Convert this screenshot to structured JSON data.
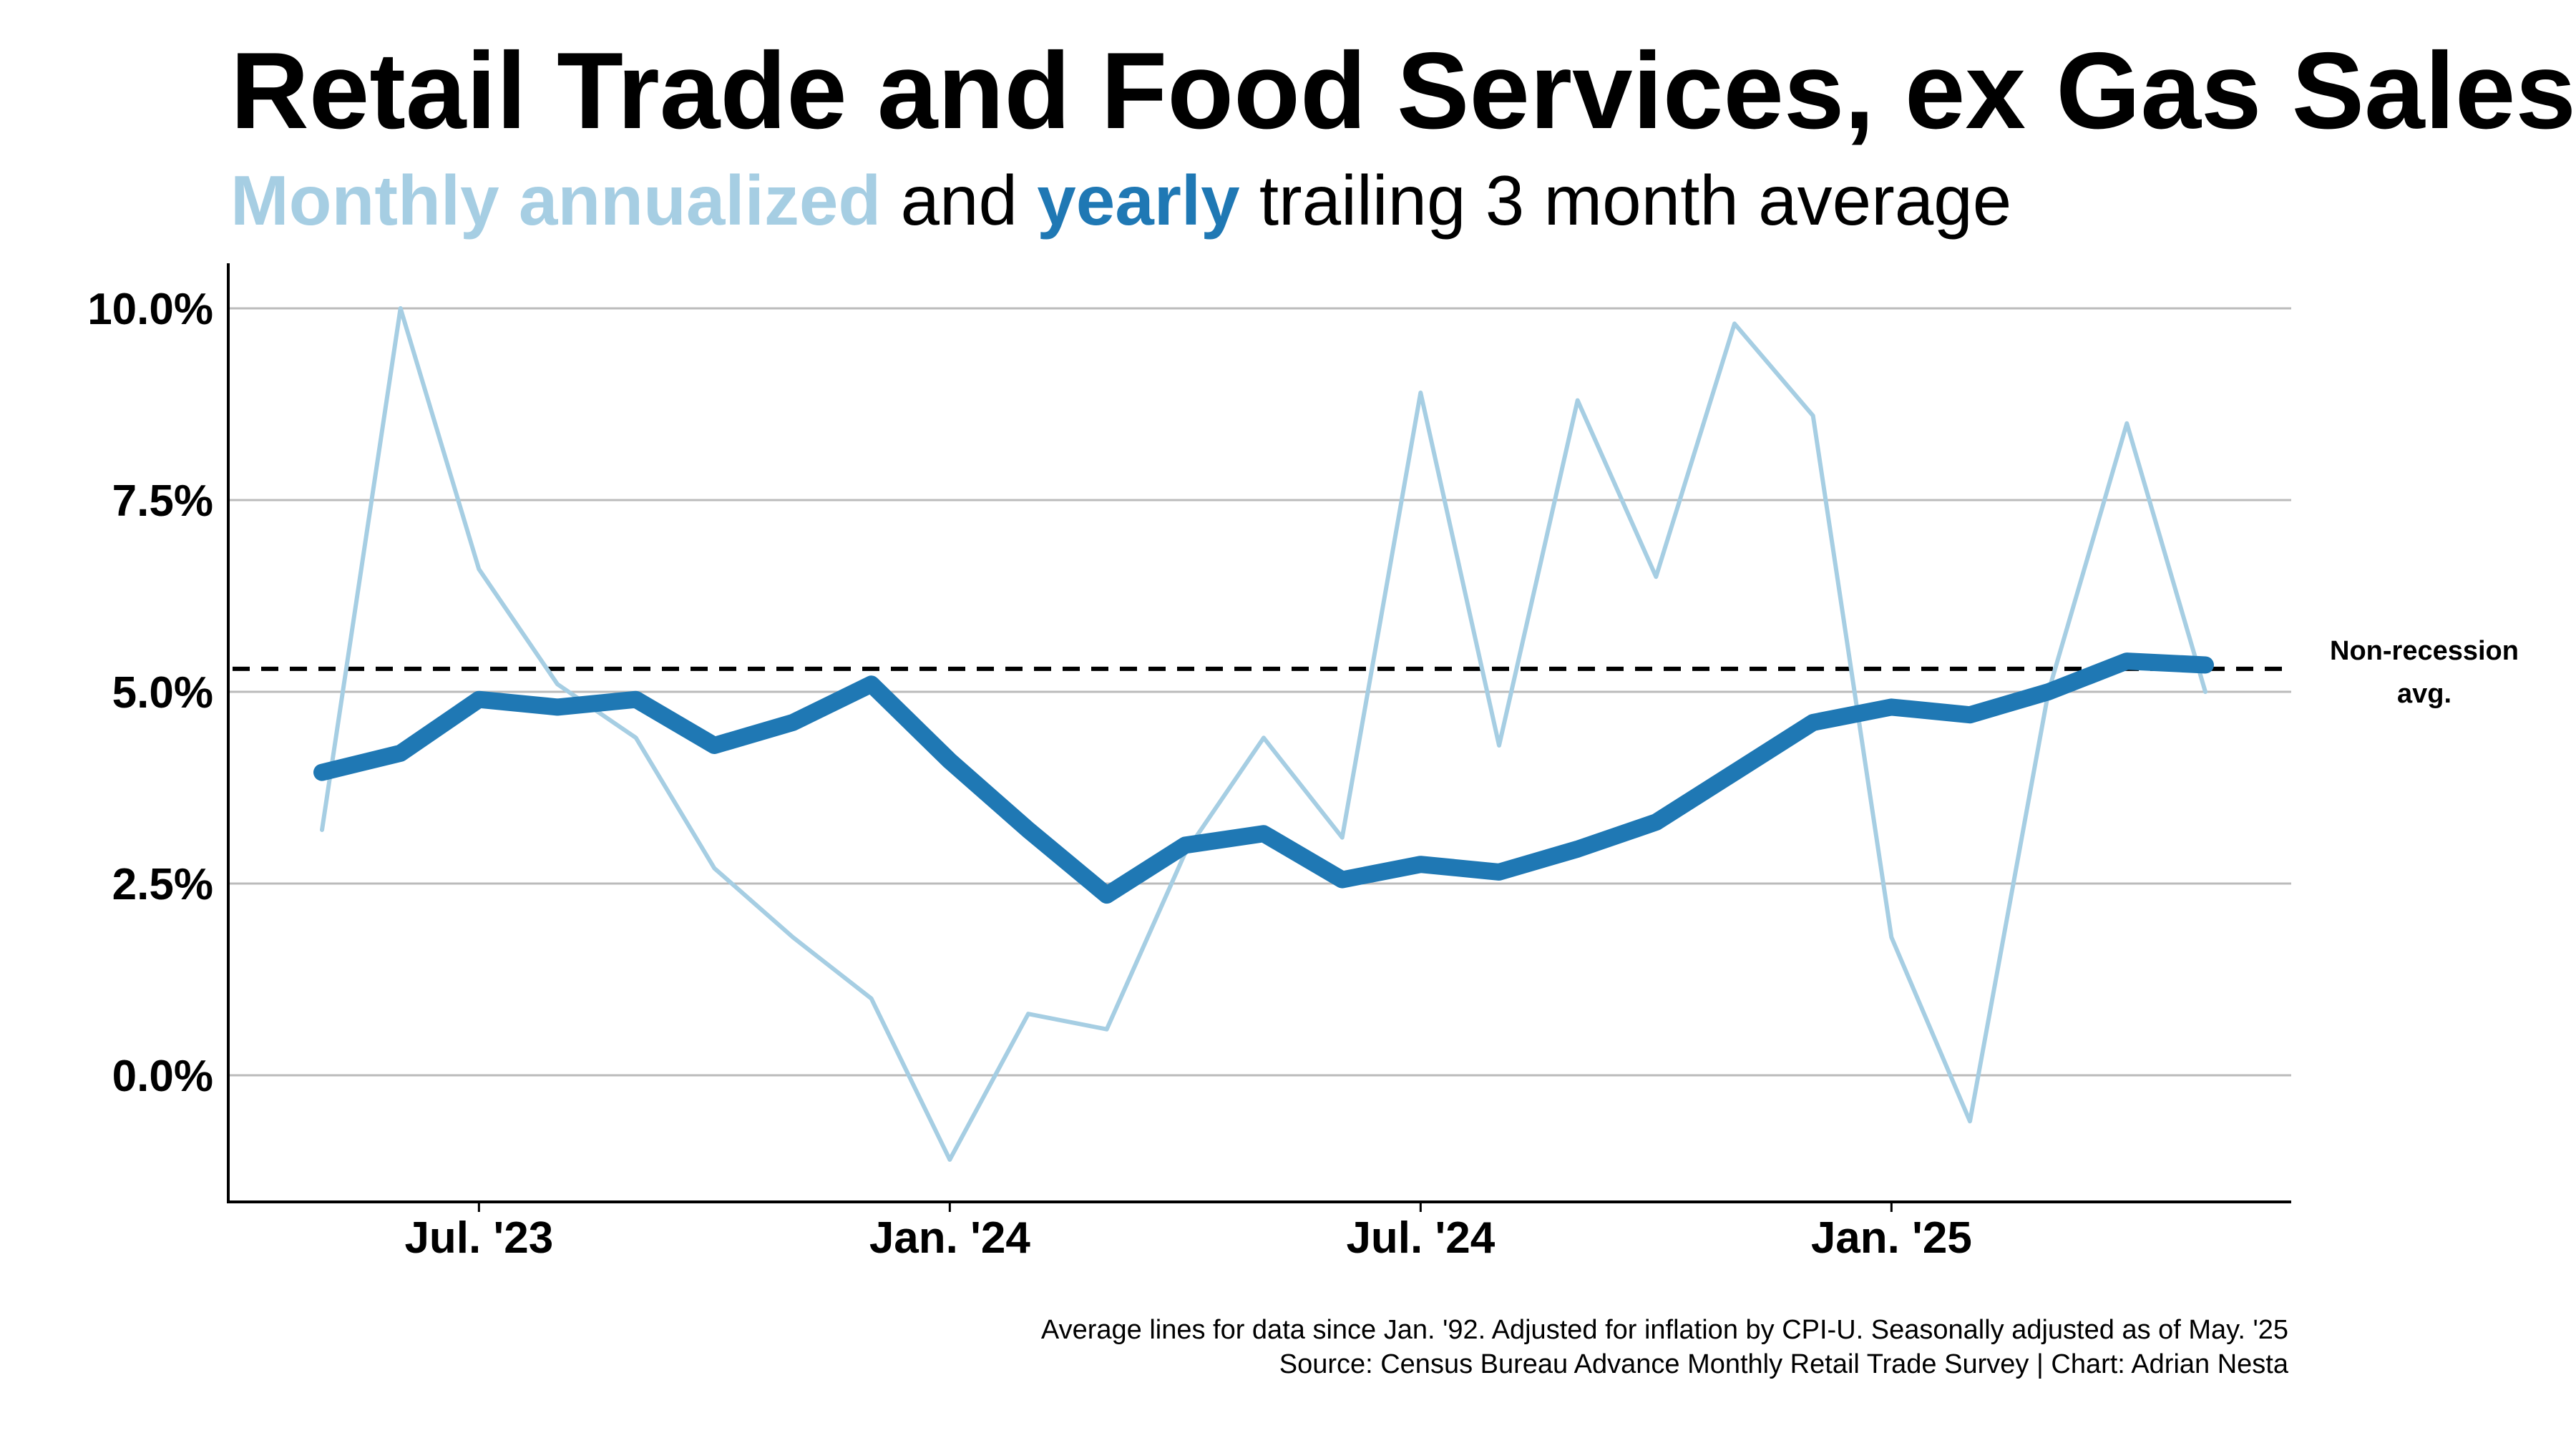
{
  "chart_data": {
    "type": "line",
    "title": "Retail Trade and Food Services, ex Gas Sales",
    "subtitle": {
      "part1": "Monthly annualized",
      "part2": " and ",
      "part3": "yearly",
      "part4": " trailing 3 month average"
    },
    "x": [
      "2023-05",
      "2023-06",
      "2023-07",
      "2023-08",
      "2023-09",
      "2023-10",
      "2023-11",
      "2023-12",
      "2024-01",
      "2024-02",
      "2024-03",
      "2024-04",
      "2024-05",
      "2024-06",
      "2024-07",
      "2024-08",
      "2024-09",
      "2024-10",
      "2024-11",
      "2024-12",
      "2025-01",
      "2025-02",
      "2025-03",
      "2025-04",
      "2025-05"
    ],
    "x_ticks": [
      {
        "label": "Jul. '23",
        "x": "2023-07"
      },
      {
        "label": "Jan. '24",
        "x": "2024-01"
      },
      {
        "label": "Jul. '24",
        "x": "2024-07"
      },
      {
        "label": "Jan. '25",
        "x": "2025-01"
      }
    ],
    "y_ticks": [
      {
        "label": "0.0%",
        "value": 0
      },
      {
        "label": "2.5%",
        "value": 2.5
      },
      {
        "label": "5.0%",
        "value": 5
      },
      {
        "label": "7.5%",
        "value": 7.5
      },
      {
        "label": "10.0%",
        "value": 10
      }
    ],
    "ylim": [
      -1.65,
      10.6
    ],
    "grid": true,
    "series": [
      {
        "name": "Monthly annualized",
        "color": "#a6cee3",
        "values": [
          3.2,
          10.0,
          6.6,
          5.1,
          4.4,
          2.7,
          1.8,
          1.0,
          -1.1,
          0.8,
          0.6,
          2.9,
          4.4,
          3.1,
          8.9,
          4.3,
          8.8,
          6.5,
          9.8,
          8.6,
          1.8,
          -0.6,
          5.0,
          8.5,
          5.0
        ]
      },
      {
        "name": "yearly",
        "color": "#1f78b4",
        "values": [
          3.95,
          4.2,
          4.9,
          4.8,
          4.9,
          4.3,
          4.6,
          5.1,
          4.1,
          3.2,
          2.35,
          3.0,
          3.15,
          2.55,
          2.75,
          2.65,
          2.95,
          3.3,
          3.95,
          4.6,
          4.8,
          4.7,
          5.0,
          5.4,
          5.35
        ]
      }
    ],
    "reference_line": {
      "value": 5.3,
      "label_line1": "Non-recession",
      "label_line2": "avg."
    },
    "footnotes": [
      "Average lines for data since Jan. '92. Adjusted for inflation by CPI-U. Seasonally adjusted as of May. '25",
      "Source: Census Bureau Advance Monthly Retail Trade Survey | Chart: Adrian Nesta"
    ]
  }
}
